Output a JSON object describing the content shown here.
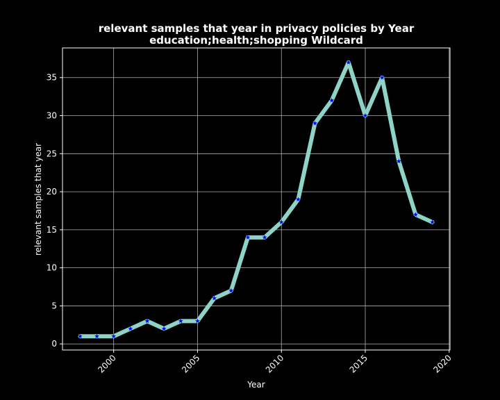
{
  "chart_data": {
    "type": "line",
    "title": "relevant samples that year in privacy policies by Year",
    "subtitle": "education;health;shopping Wildcard",
    "xlabel": "Year",
    "ylabel": "relevant samples that year",
    "x": [
      1998,
      1999,
      2000,
      2001,
      2002,
      2003,
      2004,
      2005,
      2006,
      2007,
      2008,
      2009,
      2010,
      2011,
      2012,
      2013,
      2014,
      2015,
      2016,
      2017,
      2018,
      2019
    ],
    "series": [
      {
        "values": [
          1,
          1,
          1,
          2,
          3,
          2,
          3,
          3,
          6,
          7,
          14,
          14,
          16,
          19,
          29,
          32,
          37,
          30,
          35,
          24,
          17,
          16
        ],
        "line_color": "#8dd3c7",
        "marker_color": "#0000ff",
        "marker": "star"
      }
    ],
    "xlim": [
      1996.95,
      2020.05
    ],
    "ylim": [
      -0.8,
      38.9
    ],
    "xticks": [
      "2000",
      "2005",
      "2010",
      "2015",
      "2020"
    ],
    "yticks": [
      "0",
      "5",
      "10",
      "15",
      "20",
      "25",
      "30",
      "35"
    ],
    "grid": true,
    "background": "#000000",
    "foreground": "#ffffff"
  }
}
